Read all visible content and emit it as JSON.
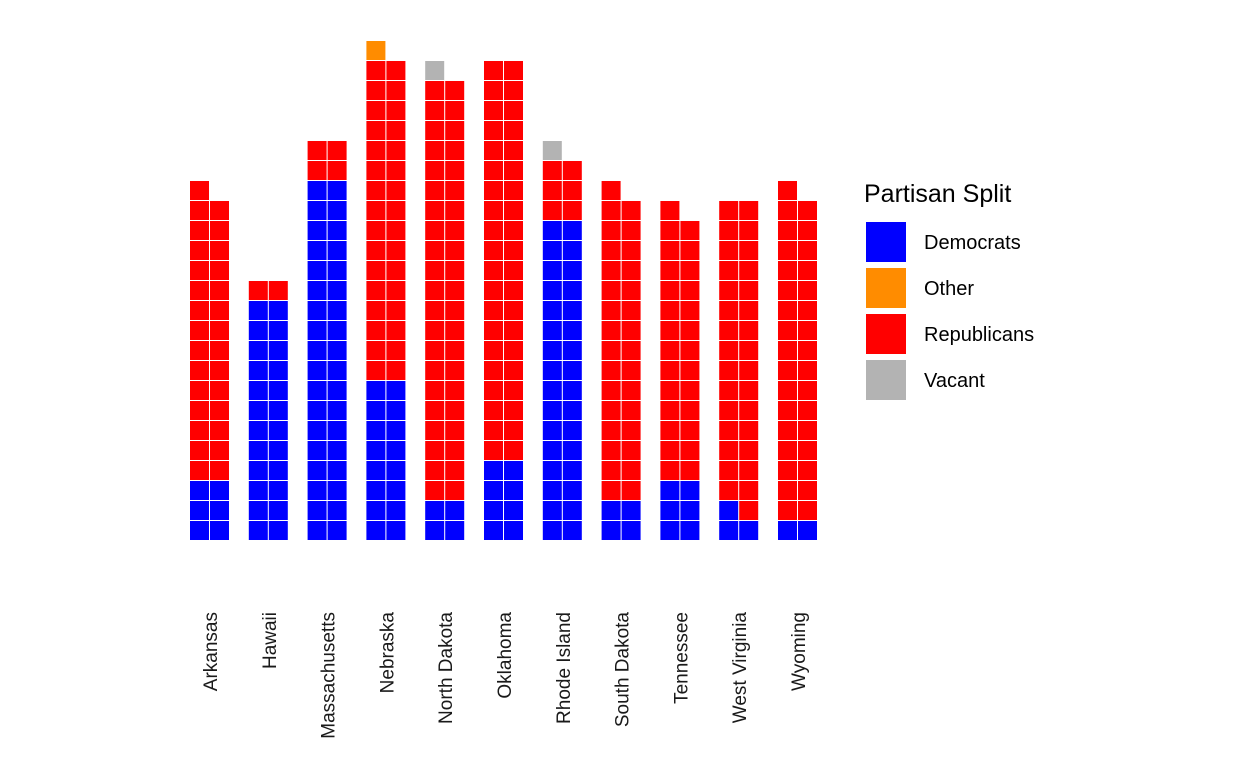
{
  "chart_data": {
    "type": "waffle",
    "title": "",
    "xlabel": "",
    "ylabel": "",
    "grid": false,
    "legend_position": "right",
    "legend_title": "Partisan Split",
    "columns_per_bar": 2,
    "parties": [
      {
        "name": "Democrats",
        "color": "#0000FF"
      },
      {
        "name": "Other",
        "color": "#FF8C00"
      },
      {
        "name": "Republicans",
        "color": "#FF0000"
      },
      {
        "name": "Vacant",
        "color": "#B3B3B3"
      }
    ],
    "stack_order": [
      "Democrats",
      "Republicans",
      "Other",
      "Vacant"
    ],
    "categories": [
      "Arkansas",
      "Hawaii",
      "Massachusetts",
      "Nebraska",
      "North Dakota",
      "Oklahoma",
      "Rhode Island",
      "South Dakota",
      "Tennessee",
      "West Virginia",
      "Wyoming"
    ],
    "series": [
      {
        "name": "Democrats",
        "values": [
          6,
          24,
          36,
          16,
          4,
          8,
          32,
          4,
          6,
          3,
          2
        ]
      },
      {
        "name": "Republicans",
        "values": [
          29,
          2,
          4,
          32,
          42,
          40,
          6,
          31,
          27,
          31,
          33
        ]
      },
      {
        "name": "Other",
        "values": [
          0,
          0,
          0,
          1,
          0,
          0,
          0,
          0,
          0,
          0,
          0
        ]
      },
      {
        "name": "Vacant",
        "values": [
          0,
          0,
          0,
          0,
          1,
          0,
          1,
          0,
          0,
          0,
          0
        ]
      }
    ]
  }
}
